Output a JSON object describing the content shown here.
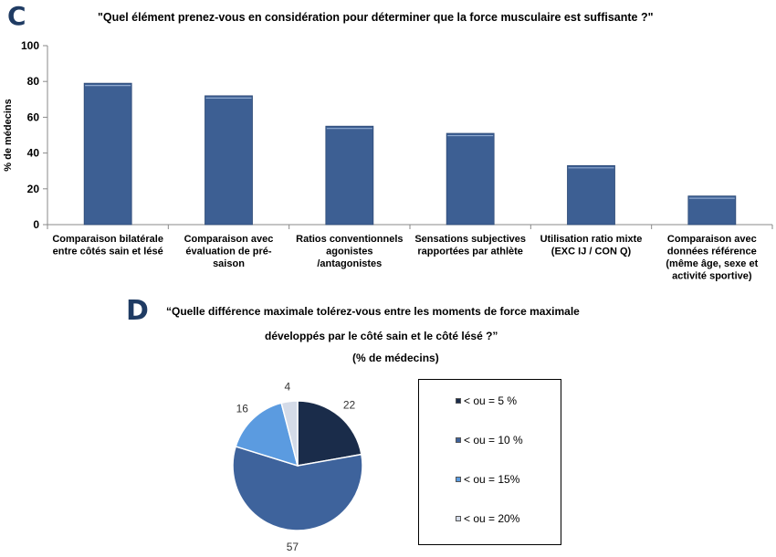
{
  "panel_c": {
    "letter": "C",
    "question": "\"Quel élément prenez-vous en considération pour déterminer que la force musculaire est suffisante ?\""
  },
  "panel_d": {
    "letter": "D",
    "question_line1": "“Quelle différence maximale tolérez-vous entre les moments de force maximale",
    "question_line2": "développés par le côté sain et le côté lésé ?”",
    "question_line3": "(% de médecins)"
  },
  "chart_data": [
    {
      "type": "bar",
      "title": "\"Quel élément prenez-vous en considération pour déterminer que la force musculaire est suffisante ?\"",
      "ylabel": "% de médecins",
      "xlabel": "",
      "ylim": [
        0,
        100
      ],
      "yticks": [
        0,
        20,
        40,
        60,
        80,
        100
      ],
      "grid": false,
      "bar_color": "#3d5f93",
      "categories": [
        [
          "Comparaison bilatérale",
          "entre côtés sain et lésé"
        ],
        [
          "Comparaison avec",
          "évaluation de pré-",
          "saison"
        ],
        [
          "Ratios conventionnels",
          "agonistes",
          "/antagonistes"
        ],
        [
          "Sensations subjectives",
          "rapportées par athlète"
        ],
        [
          "Utilisation ratio mixte",
          "(EXC IJ / CON Q)"
        ],
        [
          "Comparaison avec",
          "données référence",
          "(même âge, sexe et",
          "activité sportive)"
        ]
      ],
      "values": [
        79,
        72,
        55,
        51,
        33,
        16
      ]
    },
    {
      "type": "pie",
      "title": "“Quelle différence maximale tolérez-vous entre les moments de force maximale développés par le côté sain et le côté lésé ?” (% de médecins)",
      "legend_position": "right",
      "slices": [
        {
          "label": "< ou = 5 %",
          "value": 22,
          "color": "#1a2c4a"
        },
        {
          "label": "< ou = 10 %",
          "value": 57,
          "color": "#3e639c"
        },
        {
          "label": "< ou = 15%",
          "value": 16,
          "color": "#5b9be0"
        },
        {
          "label": "< ou = 20%",
          "value": 4,
          "color": "#d4dbe8"
        }
      ]
    }
  ]
}
